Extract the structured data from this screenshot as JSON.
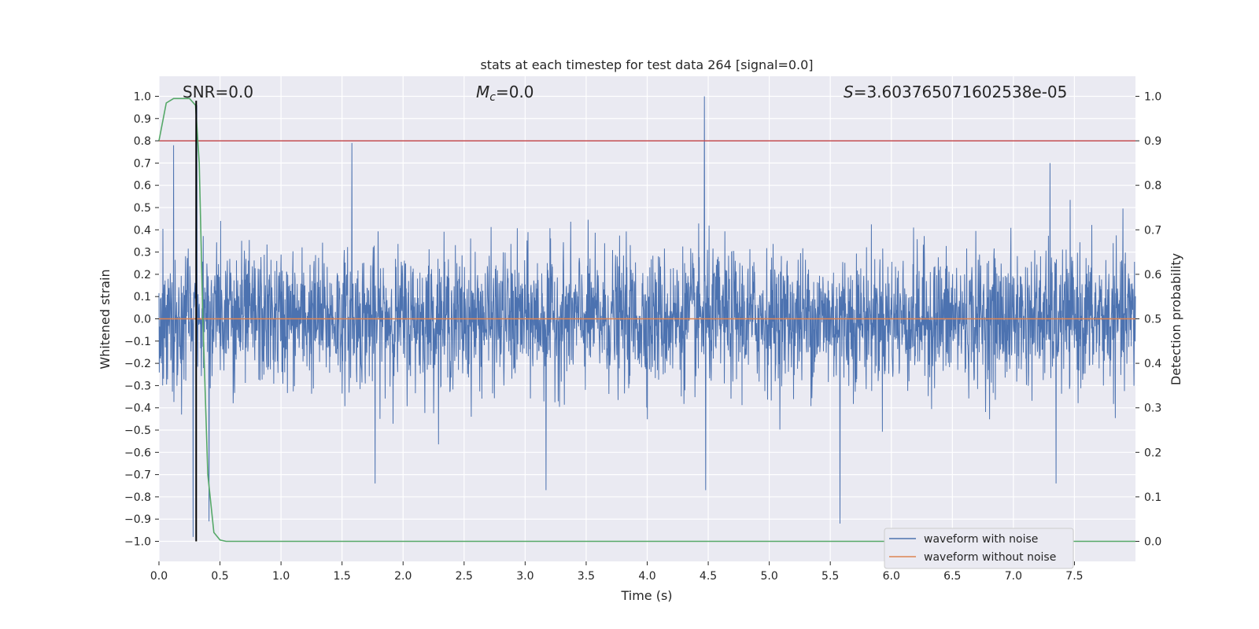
{
  "chart_data": {
    "type": "line",
    "title": "stats at each timestep for test data 264 [signal=0.0]",
    "annotations": {
      "snr": "SNR=0.0",
      "mc_symbol": "M",
      "mc_subscript": "c",
      "mc_value": "=0.0",
      "s_symbol": "S",
      "s_value": "=3.603765071602538e-05"
    },
    "xlabel": "Time (s)",
    "ylabel_left": "Whitened strain",
    "ylabel_right": "Detection probability",
    "xlim": [
      0.0,
      8.0
    ],
    "ylim_left": [
      -1.09,
      1.09
    ],
    "ylim_right": [
      -0.045,
      1.045
    ],
    "x_ticks": [
      0.0,
      0.5,
      1.0,
      1.5,
      2.0,
      2.5,
      3.0,
      3.5,
      4.0,
      4.5,
      5.0,
      5.5,
      6.0,
      6.5,
      7.0,
      7.5
    ],
    "x_tick_labels": [
      "0.0",
      "0.5",
      "1.0",
      "1.5",
      "2.0",
      "2.5",
      "3.0",
      "3.5",
      "4.0",
      "4.5",
      "5.0",
      "5.5",
      "6.0",
      "6.5",
      "7.0",
      "7.5"
    ],
    "y_left_ticks": [
      1.0,
      0.9,
      0.8,
      0.7,
      0.6,
      0.5,
      0.4,
      0.3,
      0.2,
      0.1,
      0.0,
      -0.1,
      -0.2,
      -0.3,
      -0.4,
      -0.5,
      -0.6,
      -0.7,
      -0.8,
      -0.9,
      -1.0
    ],
    "y_left_tick_labels": [
      "1.0",
      "0.9",
      "0.8",
      "0.7",
      "0.6",
      "0.5",
      "0.4",
      "0.3",
      "0.2",
      "0.1",
      "0.0",
      "−0.1",
      "−0.2",
      "−0.3",
      "−0.4",
      "−0.5",
      "−0.6",
      "−0.7",
      "−0.8",
      "−0.9",
      "−1.0"
    ],
    "y_right_ticks": [
      1.0,
      0.9,
      0.8,
      0.7,
      0.6,
      0.5,
      0.4,
      0.3,
      0.2,
      0.1,
      0.0
    ],
    "y_right_tick_labels": [
      "1.0",
      "0.9",
      "0.8",
      "0.7",
      "0.6",
      "0.5",
      "0.4",
      "0.3",
      "0.2",
      "0.1",
      "0.0"
    ],
    "series": [
      {
        "name": "waveform with noise",
        "color": "#4c72b0",
        "axis": "left",
        "description": "dense noise, approx. within [-0.4, 0.4] with occasional spikes",
        "spikes": [
          {
            "x": 0.12,
            "y": 0.78
          },
          {
            "x": 0.28,
            "y": -0.98
          },
          {
            "x": 0.31,
            "y": 0.96
          },
          {
            "x": 0.41,
            "y": -0.91
          },
          {
            "x": 1.58,
            "y": 0.79
          },
          {
            "x": 1.77,
            "y": -0.74
          },
          {
            "x": 3.17,
            "y": -0.77
          },
          {
            "x": 4.47,
            "y": 1.0
          },
          {
            "x": 4.48,
            "y": -0.77
          },
          {
            "x": 5.58,
            "y": -0.92
          },
          {
            "x": 7.3,
            "y": 0.7
          },
          {
            "x": 7.35,
            "y": -0.74
          }
        ]
      },
      {
        "name": "waveform without noise",
        "color": "#dd8452",
        "axis": "left",
        "x": [
          0.0,
          8.0
        ],
        "y": [
          0.0,
          0.0
        ]
      },
      {
        "name": "detection probability",
        "color": "#55a868",
        "axis": "right",
        "x": [
          0.0,
          0.06,
          0.12,
          0.2,
          0.25,
          0.3,
          0.33,
          0.36,
          0.4,
          0.45,
          0.5,
          0.55,
          1.0,
          8.0
        ],
        "y": [
          0.9,
          0.985,
          0.995,
          0.995,
          0.995,
          0.98,
          0.85,
          0.5,
          0.15,
          0.02,
          0.003,
          0.0,
          0.0,
          0.0
        ]
      }
    ],
    "hlines": [
      {
        "y": 0.8,
        "axis": "left",
        "color": "#c44e52"
      }
    ],
    "vlines": [
      {
        "x": 0.305,
        "y_from": -1.0,
        "y_to": 0.98,
        "color": "#000000"
      }
    ],
    "legend": {
      "location": "lower-right",
      "entries": [
        {
          "label": "waveform with noise",
          "color": "#4c72b0"
        },
        {
          "label": "waveform without noise",
          "color": "#dd8452"
        }
      ]
    },
    "grid": true,
    "background": "#eaeaf2"
  }
}
